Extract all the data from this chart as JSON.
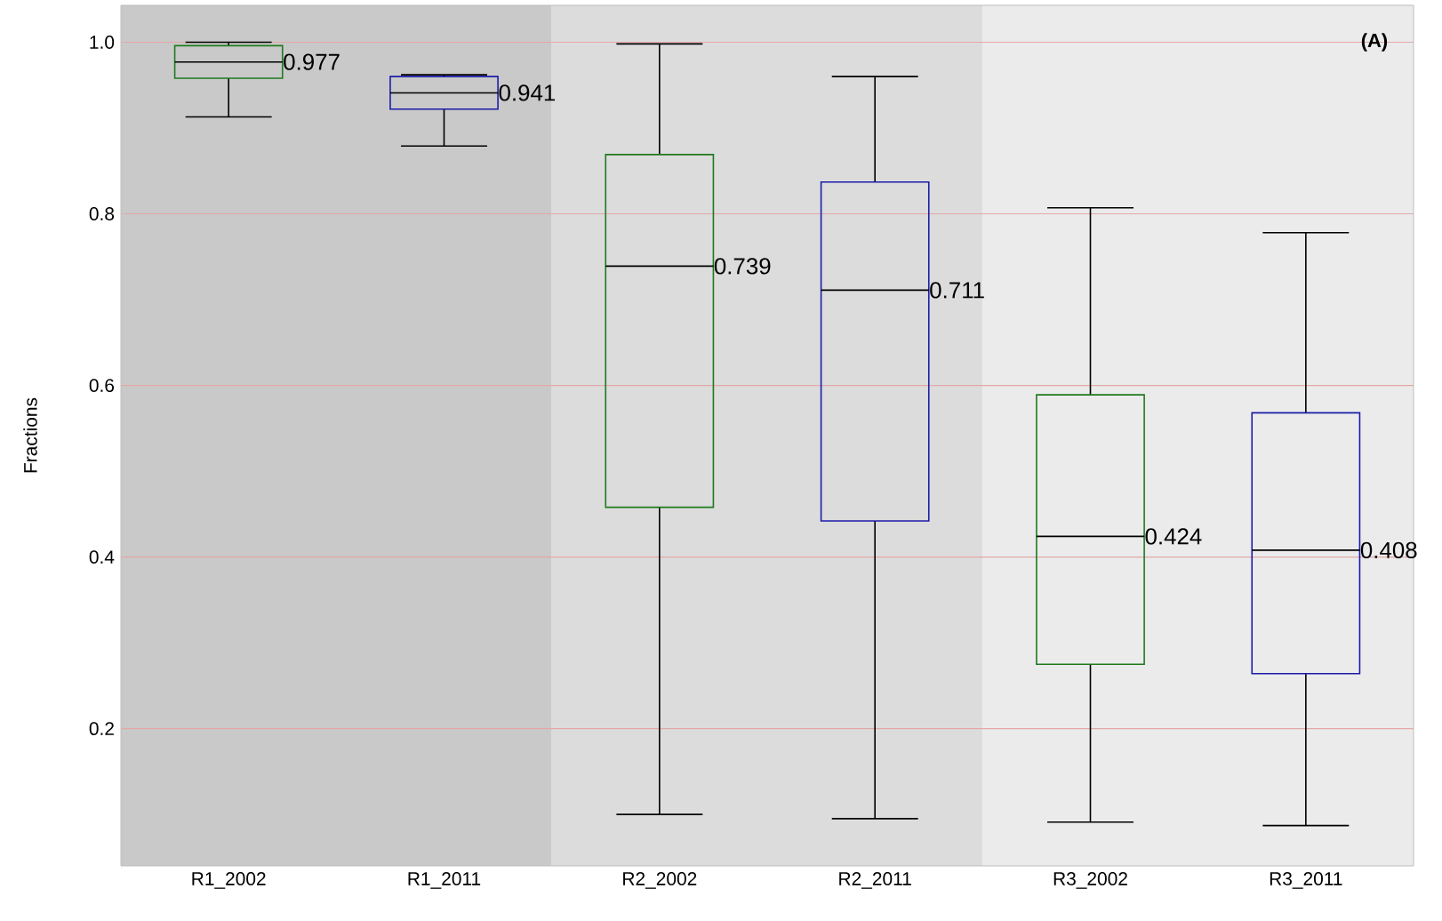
{
  "chart_data": {
    "type": "box",
    "ylabel": "Fractions",
    "categories": [
      "R1_2002",
      "R1_2011",
      "R2_2002",
      "R2_2011",
      "R3_2002",
      "R3_2011"
    ],
    "boxes": [
      {
        "low": 0.913,
        "q1": 0.958,
        "median": 0.977,
        "q3": 0.996,
        "high": 1.0
      },
      {
        "low": 0.879,
        "q1": 0.922,
        "median": 0.941,
        "q3": 0.96,
        "high": 0.962
      },
      {
        "low": 0.1,
        "q1": 0.458,
        "median": 0.739,
        "q3": 0.869,
        "high": 0.998
      },
      {
        "low": 0.095,
        "q1": 0.442,
        "median": 0.711,
        "q3": 0.837,
        "high": 0.96
      },
      {
        "low": 0.091,
        "q1": 0.275,
        "median": 0.424,
        "q3": 0.589,
        "high": 0.807
      },
      {
        "low": 0.087,
        "q1": 0.264,
        "median": 0.408,
        "q3": 0.568,
        "high": 0.778
      }
    ],
    "colors": [
      "#1f7a1f",
      "#1c1ca8",
      "#1f7a1f",
      "#1c1ca8",
      "#1f7a1f",
      "#1c1ca8"
    ],
    "ylim": [
      0.04,
      1.043
    ],
    "yticks": [
      0.2,
      0.4,
      0.6,
      0.8,
      {
        "value": 1.0,
        "label": "1.0"
      }
    ],
    "grid": "y",
    "bands": [
      {
        "axis": "x",
        "from": "R1_2002",
        "to": "R1_2011",
        "color": "#c9c9c9"
      },
      {
        "axis": "x",
        "from": "R2_2002",
        "to": "R2_2011",
        "color": "#dcdcdc"
      },
      {
        "axis": "x",
        "from": "R3_2002",
        "to": "R3_2011",
        "color": "#ebebeb"
      }
    ],
    "annotations": [
      "(A)",
      {
        "text": "0.977",
        "x": "R1_2002",
        "y": 0.977
      },
      {
        "text": "0.941",
        "x": "R1_2011",
        "y": 0.941
      },
      {
        "text": "0.739",
        "x": "R2_2002",
        "y": 0.739
      },
      {
        "text": "0.711",
        "x": "R2_2011",
        "y": 0.711
      },
      {
        "text": "0.424",
        "x": "R3_2002",
        "y": 0.424
      },
      {
        "text": "0.408",
        "x": "R3_2011",
        "y": 0.408
      }
    ]
  }
}
